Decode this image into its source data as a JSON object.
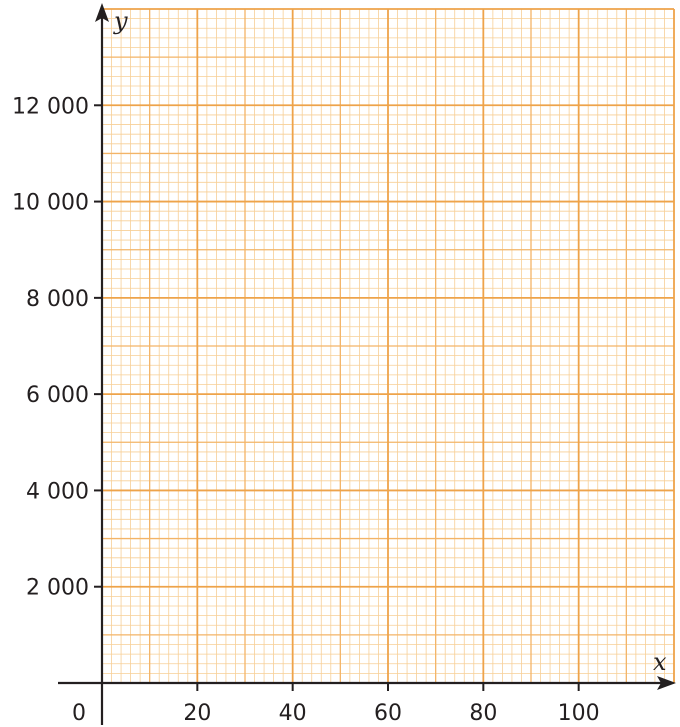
{
  "chart_data": {
    "type": "line",
    "title": "",
    "xlabel": "x",
    "ylabel": "y",
    "xlim": [
      0,
      120
    ],
    "ylim": [
      0,
      14000
    ],
    "x_major_step": 20,
    "y_major_step": 2000,
    "x_ticks": [
      20,
      40,
      60,
      80,
      100
    ],
    "y_ticks": [
      2000,
      4000,
      6000,
      8000,
      10000,
      12000
    ],
    "x_tick_labels": [
      "20",
      "40",
      "60",
      "80",
      "100"
    ],
    "y_tick_labels": [
      "2 000",
      "4 000",
      "6 000",
      "8 000",
      "10 000",
      "12 000"
    ],
    "origin_label": "0",
    "grid": true,
    "series": []
  },
  "colors": {
    "grid_fine": "#f7cf96",
    "grid_medium": "#f3b467",
    "grid_major": "#eea34a",
    "axis": "#231f20",
    "text": "#231f20"
  }
}
